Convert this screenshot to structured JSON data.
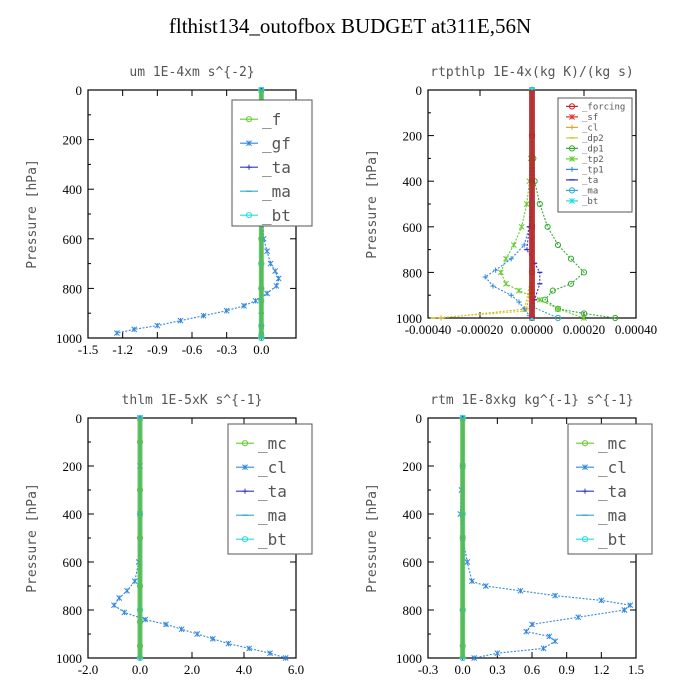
{
  "title": "flthist134_outofbox  BUDGET at311E,56N",
  "chart_data": [
    {
      "type": "line",
      "title": "um  1E-4xm s^{-2}",
      "ylabel": "Pressure [hPa]",
      "xlim": [
        -1.5,
        0.3
      ],
      "ylim": [
        1000,
        0
      ],
      "xticks": [
        "-1.5",
        "-1.2",
        "-0.9",
        "-0.6",
        "-0.3",
        "0.0"
      ],
      "xtick_values": [
        -1.5,
        -1.2,
        -0.9,
        -0.6,
        -0.3,
        0.0
      ],
      "yticks": [
        "0",
        "200",
        "400",
        "600",
        "800",
        "1000"
      ],
      "ytick_values": [
        0,
        200,
        400,
        600,
        800,
        1000
      ],
      "legend_size": "large",
      "series": [
        {
          "name": "_f",
          "color": "#66cc33",
          "x": [
            0,
            0,
            0,
            0,
            0,
            0,
            0,
            0,
            0,
            0
          ],
          "y": [
            0,
            100,
            200,
            300,
            400,
            500,
            600,
            700,
            800,
            1000
          ]
        },
        {
          "name": "_gf",
          "color": "#3388dd",
          "x": [
            0.0,
            0.0,
            0.0,
            0.0,
            0.01,
            0.01,
            0.02,
            0.05,
            0.08,
            0.12,
            0.15,
            0.13,
            0.05,
            -0.05,
            -0.15,
            -0.3,
            -0.5,
            -0.7,
            -0.9,
            -1.1,
            -1.25
          ],
          "y": [
            0,
            100,
            200,
            300,
            400,
            500,
            600,
            650,
            700,
            730,
            760,
            790,
            820,
            850,
            870,
            890,
            910,
            930,
            950,
            965,
            980
          ]
        },
        {
          "name": "_ta",
          "color": "#3333cc",
          "x": [
            0,
            0,
            0,
            0,
            0,
            0,
            0,
            0,
            0
          ],
          "y": [
            0,
            200,
            400,
            600,
            800,
            900,
            950,
            980,
            1000
          ]
        },
        {
          "name": "_ma",
          "color": "#33aacc",
          "x": [
            0,
            0,
            0,
            0,
            0,
            0,
            0,
            0
          ],
          "y": [
            0,
            200,
            400,
            600,
            800,
            900,
            960,
            1000
          ]
        },
        {
          "name": "_bt",
          "color": "#22dddd",
          "x": [
            0,
            0,
            0,
            0,
            0,
            0,
            0,
            0,
            0
          ],
          "y": [
            0,
            100,
            300,
            500,
            700,
            850,
            950,
            990,
            1000
          ]
        }
      ]
    },
    {
      "type": "line",
      "title": "rtpthlp  1E-4x(kg K)/(kg s)",
      "ylabel": "Pressure [hPa]",
      "xlim": [
        -0.0004,
        0.0004
      ],
      "ylim": [
        1000,
        0
      ],
      "xticks": [
        "-0.00040",
        "-0.00020",
        "0.00000",
        "0.00020",
        "0.00040"
      ],
      "xtick_values": [
        -0.0004,
        -0.0002,
        0.0,
        0.0002,
        0.0004
      ],
      "yticks": [
        "0",
        "200",
        "400",
        "600",
        "800",
        "1000"
      ],
      "ytick_values": [
        0,
        200,
        400,
        600,
        800,
        1000
      ],
      "legend_size": "small",
      "series": [
        {
          "name": "_forcing",
          "color": "#cc2222",
          "x": [
            0,
            0,
            0,
            0,
            0,
            0,
            0
          ],
          "y": [
            0,
            200,
            400,
            600,
            800,
            950,
            1000
          ]
        },
        {
          "name": "_sf",
          "color": "#dd3333",
          "x": [
            0,
            0,
            0,
            0,
            0
          ],
          "y": [
            0,
            300,
            600,
            900,
            1000
          ]
        },
        {
          "name": "_cl",
          "color": "#ddaa22",
          "x": [
            0,
            0,
            0,
            -2e-05,
            -0.00035
          ],
          "y": [
            0,
            400,
            800,
            960,
            1000
          ]
        },
        {
          "name": "_dp2",
          "color": "#cccc22",
          "x": [
            0,
            0,
            0,
            -3e-05,
            -0.00038
          ],
          "y": [
            0,
            400,
            800,
            970,
            1000
          ]
        },
        {
          "name": "_dp1",
          "color": "#33aa33",
          "x": [
            0.0,
            5e-06,
            1e-05,
            3e-05,
            6e-05,
            0.0001,
            0.00015,
            0.0002,
            0.00015,
            8e-05,
            5e-05,
            0.0001,
            0.0002,
            0.00032
          ],
          "y": [
            0,
            300,
            400,
            500,
            600,
            680,
            740,
            800,
            850,
            880,
            920,
            960,
            980,
            1000
          ]
        },
        {
          "name": "_tp2",
          "color": "#66cc33",
          "x": [
            0.0,
            -5e-06,
            -1e-05,
            -2e-05,
            -4e-05,
            -7e-05,
            -0.0001,
            -0.00012,
            -0.0001,
            -5e-05,
            3e-05,
            0.0001,
            0.0002
          ],
          "y": [
            0,
            300,
            400,
            500,
            600,
            680,
            740,
            800,
            850,
            880,
            920,
            960,
            1000
          ]
        },
        {
          "name": "_tp1",
          "color": "#3388dd",
          "x": [
            0.0,
            0.0,
            -1e-05,
            -3e-05,
            -8e-05,
            -0.00014,
            -0.00018,
            -0.00015,
            -8e-05,
            -5e-05,
            -3e-05,
            -1e-05,
            0.0
          ],
          "y": [
            0,
            400,
            600,
            680,
            740,
            790,
            820,
            860,
            900,
            930,
            960,
            990,
            1000
          ]
        },
        {
          "name": "_ta",
          "color": "#3333cc",
          "x": [
            0.0,
            0.0,
            -1e-05,
            -2e-05,
            1e-05,
            3e-05,
            3e-05,
            1e-05,
            0.0
          ],
          "y": [
            0,
            400,
            600,
            700,
            760,
            800,
            850,
            920,
            1000
          ]
        },
        {
          "name": "_ma",
          "color": "#33aacc",
          "x": [
            0,
            0,
            0,
            0.0001
          ],
          "y": [
            0,
            500,
            950,
            1000
          ]
        },
        {
          "name": "_bt",
          "color": "#22dddd",
          "x": [
            0,
            0,
            0,
            0
          ],
          "y": [
            0,
            500,
            950,
            1000
          ]
        }
      ]
    },
    {
      "type": "line",
      "title": "thlm  1E-5xK s^{-1}",
      "ylabel": "Pressure [hPa]",
      "xlim": [
        -2.0,
        6.0
      ],
      "ylim": [
        1000,
        0
      ],
      "xticks": [
        "-2.0",
        "0.0",
        "2.0",
        "4.0",
        "6.0"
      ],
      "xtick_values": [
        -2.0,
        0.0,
        2.0,
        4.0,
        6.0
      ],
      "yticks": [
        "0",
        "200",
        "400",
        "600",
        "800",
        "1000"
      ],
      "ytick_values": [
        0,
        200,
        400,
        600,
        800,
        1000
      ],
      "legend_size": "large",
      "series": [
        {
          "name": "_mc",
          "color": "#66cc33",
          "x": [
            0,
            0,
            0,
            0,
            0,
            0,
            0,
            0
          ],
          "y": [
            0,
            100,
            300,
            500,
            700,
            850,
            950,
            1000
          ]
        },
        {
          "name": "_cl",
          "color": "#3388dd",
          "x": [
            0.0,
            0.0,
            0.0,
            -0.05,
            -0.2,
            -0.5,
            -0.8,
            -1.0,
            -0.6,
            0.2,
            1.0,
            1.6,
            2.2,
            2.8,
            3.4,
            4.2,
            5.0,
            5.6
          ],
          "y": [
            0,
            200,
            400,
            600,
            680,
            720,
            750,
            780,
            810,
            840,
            860,
            880,
            900,
            920,
            940,
            960,
            980,
            1000
          ]
        },
        {
          "name": "_ta",
          "color": "#3333cc",
          "x": [
            0,
            0,
            0,
            0
          ],
          "y": [
            0,
            400,
            800,
            1000
          ]
        },
        {
          "name": "_ma",
          "color": "#33aacc",
          "x": [
            0,
            0,
            0,
            0
          ],
          "y": [
            0,
            400,
            800,
            1000
          ]
        },
        {
          "name": "_bt",
          "color": "#22dddd",
          "x": [
            0,
            0,
            0,
            0
          ],
          "y": [
            0,
            400,
            800,
            1000
          ]
        }
      ]
    },
    {
      "type": "line",
      "title": "rtm  1E-8xkg kg^{-1} s^{-1}",
      "ylabel": "Pressure [hPa]",
      "xlim": [
        -0.3,
        1.5
      ],
      "ylim": [
        1000,
        0
      ],
      "xticks": [
        "-0.3",
        "0.0",
        "0.3",
        "0.6",
        "0.9",
        "1.2",
        "1.5"
      ],
      "xtick_values": [
        -0.3,
        0.0,
        0.3,
        0.6,
        0.9,
        1.2,
        1.5
      ],
      "yticks": [
        "0",
        "200",
        "400",
        "600",
        "800",
        "1000"
      ],
      "ytick_values": [
        0,
        200,
        400,
        600,
        800,
        1000
      ],
      "legend_size": "large",
      "series": [
        {
          "name": "_mc",
          "color": "#66cc33",
          "x": [
            0,
            0,
            0,
            0,
            0,
            0
          ],
          "y": [
            0,
            200,
            500,
            800,
            950,
            1000
          ]
        },
        {
          "name": "_cl",
          "color": "#3388dd",
          "x": [
            0.0,
            0.0,
            -0.01,
            -0.02,
            0.0,
            0.04,
            0.08,
            0.2,
            0.5,
            0.8,
            1.2,
            1.45,
            1.4,
            1.0,
            0.6,
            0.55,
            0.75,
            0.8,
            0.7,
            0.3,
            0.1
          ],
          "y": [
            0,
            200,
            300,
            400,
            500,
            600,
            680,
            700,
            720,
            740,
            760,
            780,
            800,
            830,
            860,
            890,
            910,
            930,
            960,
            980,
            1000
          ]
        },
        {
          "name": "_ta",
          "color": "#3333cc",
          "x": [
            0,
            0,
            0,
            0
          ],
          "y": [
            0,
            400,
            800,
            1000
          ]
        },
        {
          "name": "_ma",
          "color": "#33aacc",
          "x": [
            0,
            0,
            0,
            0
          ],
          "y": [
            0,
            400,
            800,
            1000
          ]
        },
        {
          "name": "_bt",
          "color": "#22dddd",
          "x": [
            0,
            0,
            0,
            0
          ],
          "y": [
            0,
            400,
            800,
            1000
          ]
        }
      ]
    }
  ]
}
